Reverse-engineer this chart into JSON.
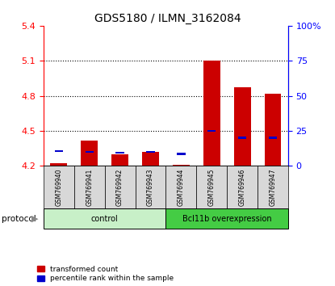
{
  "title": "GDS5180 / ILMN_3162084",
  "samples": [
    "GSM769940",
    "GSM769941",
    "GSM769942",
    "GSM769943",
    "GSM769944",
    "GSM769945",
    "GSM769946",
    "GSM769947"
  ],
  "red_values": [
    4.22,
    4.42,
    4.3,
    4.32,
    4.21,
    5.1,
    4.87,
    4.82
  ],
  "blue_values": [
    10.5,
    10.0,
    9.5,
    10.0,
    8.5,
    25.0,
    20.0,
    20.0
  ],
  "groups": [
    {
      "label": "control",
      "start": 0,
      "end": 4,
      "color": "#c8f0c8"
    },
    {
      "label": "Bcl11b overexpression",
      "start": 4,
      "end": 8,
      "color": "#44cc44"
    }
  ],
  "ylim_left": [
    4.2,
    5.4
  ],
  "ylim_right": [
    0,
    100
  ],
  "yticks_left": [
    4.2,
    4.5,
    4.8,
    5.1,
    5.4
  ],
  "yticks_right": [
    0,
    25,
    50,
    75,
    100
  ],
  "ytick_labels_right": [
    "0",
    "25",
    "50",
    "75",
    "100%"
  ],
  "left_axis_color": "red",
  "right_axis_color": "blue",
  "bar_width": 0.55,
  "bar_color_red": "#cc0000",
  "bar_color_blue": "#0000cc",
  "legend_label_red": "transformed count",
  "legend_label_blue": "percentile rank within the sample",
  "protocol_label": "protocol",
  "base_value": 4.2,
  "grid_dotted_ticks": [
    4.5,
    4.8,
    5.1
  ]
}
